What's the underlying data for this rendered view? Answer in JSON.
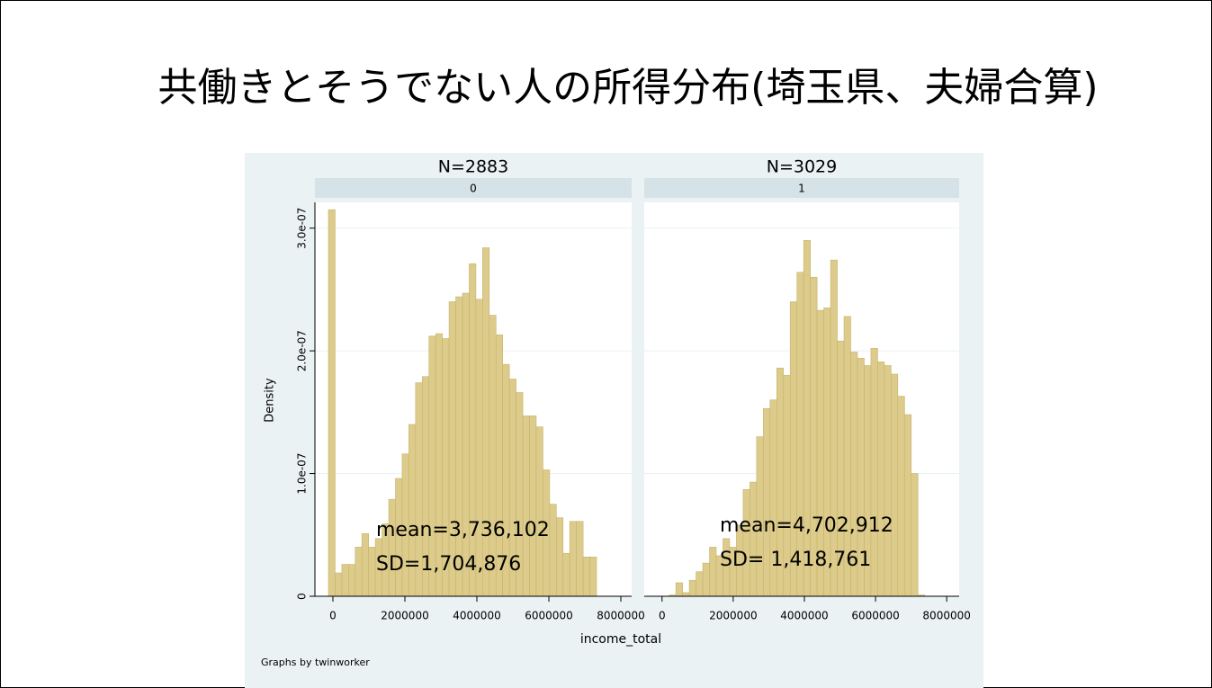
{
  "title": "共働きとそうでない人の所得分布(埼玉県、夫婦合算)",
  "y_label": "Density",
  "x_label": "income_total",
  "note": "Graphs by twinworker",
  "chart_data": [
    {
      "type": "histogram",
      "title": "N=2883",
      "subtitle": "0",
      "color": "#dccb8a",
      "bins": [
        -125000,
        61250,
        247500,
        433750,
        620000,
        806250,
        992500,
        1178750,
        1365000,
        1551250,
        1737500,
        1923750,
        2110000,
        2296250,
        2482500,
        2668750,
        2855000,
        3041250,
        3227500,
        3413750,
        3600000,
        3786250,
        3972500,
        4158750,
        4345000,
        4531250,
        4717500,
        4903750,
        5090000,
        5276250,
        5462500,
        5648750,
        5835000,
        6021250,
        6207500,
        6393750,
        6580000,
        6766250,
        6952500,
        7138750,
        7325000
      ],
      "values": [
        3.15e-07,
        1.9e-08,
        2.6e-08,
        2.6e-08,
        4e-08,
        5.1e-08,
        4e-08,
        4.7e-08,
        5.9e-08,
        7.9e-08,
        9.6e-08,
        1.16e-07,
        1.4e-07,
        1.74e-07,
        1.79e-07,
        2.12e-07,
        2.14e-07,
        2.1e-07,
        2.4e-07,
        2.44e-07,
        2.47e-07,
        2.71e-07,
        2.42e-07,
        2.84e-07,
        2.29e-07,
        2.13e-07,
        1.89e-07,
        1.77e-07,
        1.66e-07,
        1.47e-07,
        1.47e-07,
        1.38e-07,
        1.03e-07,
        7.5e-08,
        6.4e-08,
        3.5e-08,
        6.1e-08,
        6.1e-08,
        3.2e-08,
        3.2e-08
      ],
      "xlim": [
        -500000,
        8300000
      ],
      "xticks": [
        0,
        2000000,
        4000000,
        6000000,
        8000000
      ],
      "ylim": [
        0,
        3.21e-07
      ],
      "yticks": [
        0,
        {
          "value": 1e-07,
          "label": "1.0e-07"
        },
        {
          "value": 2e-07,
          "label": "2.0e-07"
        },
        {
          "value": 3e-07,
          "label": "3.0e-07"
        }
      ],
      "annotations": [
        "mean=3,736,102",
        "SD=1,704,876"
      ]
    },
    {
      "type": "histogram",
      "title": "N=3029",
      "subtitle": "1",
      "color": "#dccb8a",
      "bins": [
        200000,
        389000,
        578000,
        767000,
        956000,
        1145000,
        1334000,
        1523000,
        1712000,
        1901000,
        2090000,
        2279000,
        2468000,
        2657000,
        2846000,
        3035000,
        3224000,
        3413000,
        3602000,
        3791000,
        3980000,
        4169000,
        4358000,
        4547000,
        4736000,
        4925000,
        5114000,
        5303000,
        5492000,
        5681000,
        5870000,
        6059000,
        6248000,
        6437000,
        6626000,
        6815000,
        7004000,
        7193000,
        7382000
      ],
      "values": [
        1e-09,
        1.1e-08,
        3e-09,
        1.3e-08,
        2e-08,
        2.7e-08,
        4e-08,
        3.3e-08,
        4.7e-08,
        4e-08,
        5.8e-08,
        8.7e-08,
        9.3e-08,
        1.3e-07,
        1.53e-07,
        1.6e-07,
        1.86e-07,
        1.8e-07,
        2.4e-07,
        2.64e-07,
        2.9e-07,
        2.6e-07,
        2.33e-07,
        2.35e-07,
        2.74e-07,
        2.08e-07,
        2.28e-07,
        1.99e-07,
        1.94e-07,
        1.88e-07,
        2.02e-07,
        1.91e-07,
        1.88e-07,
        1.81e-07,
        1.63e-07,
        1.48e-07,
        1e-07,
        1e-09
      ],
      "xlim": [
        -500000,
        8350000
      ],
      "xticks": [
        0,
        2000000,
        4000000,
        6000000,
        8000000
      ],
      "ylim": [
        0,
        3.21e-07
      ],
      "annotations": [
        "mean=4,702,912",
        "SD= 1,418,761"
      ]
    }
  ]
}
